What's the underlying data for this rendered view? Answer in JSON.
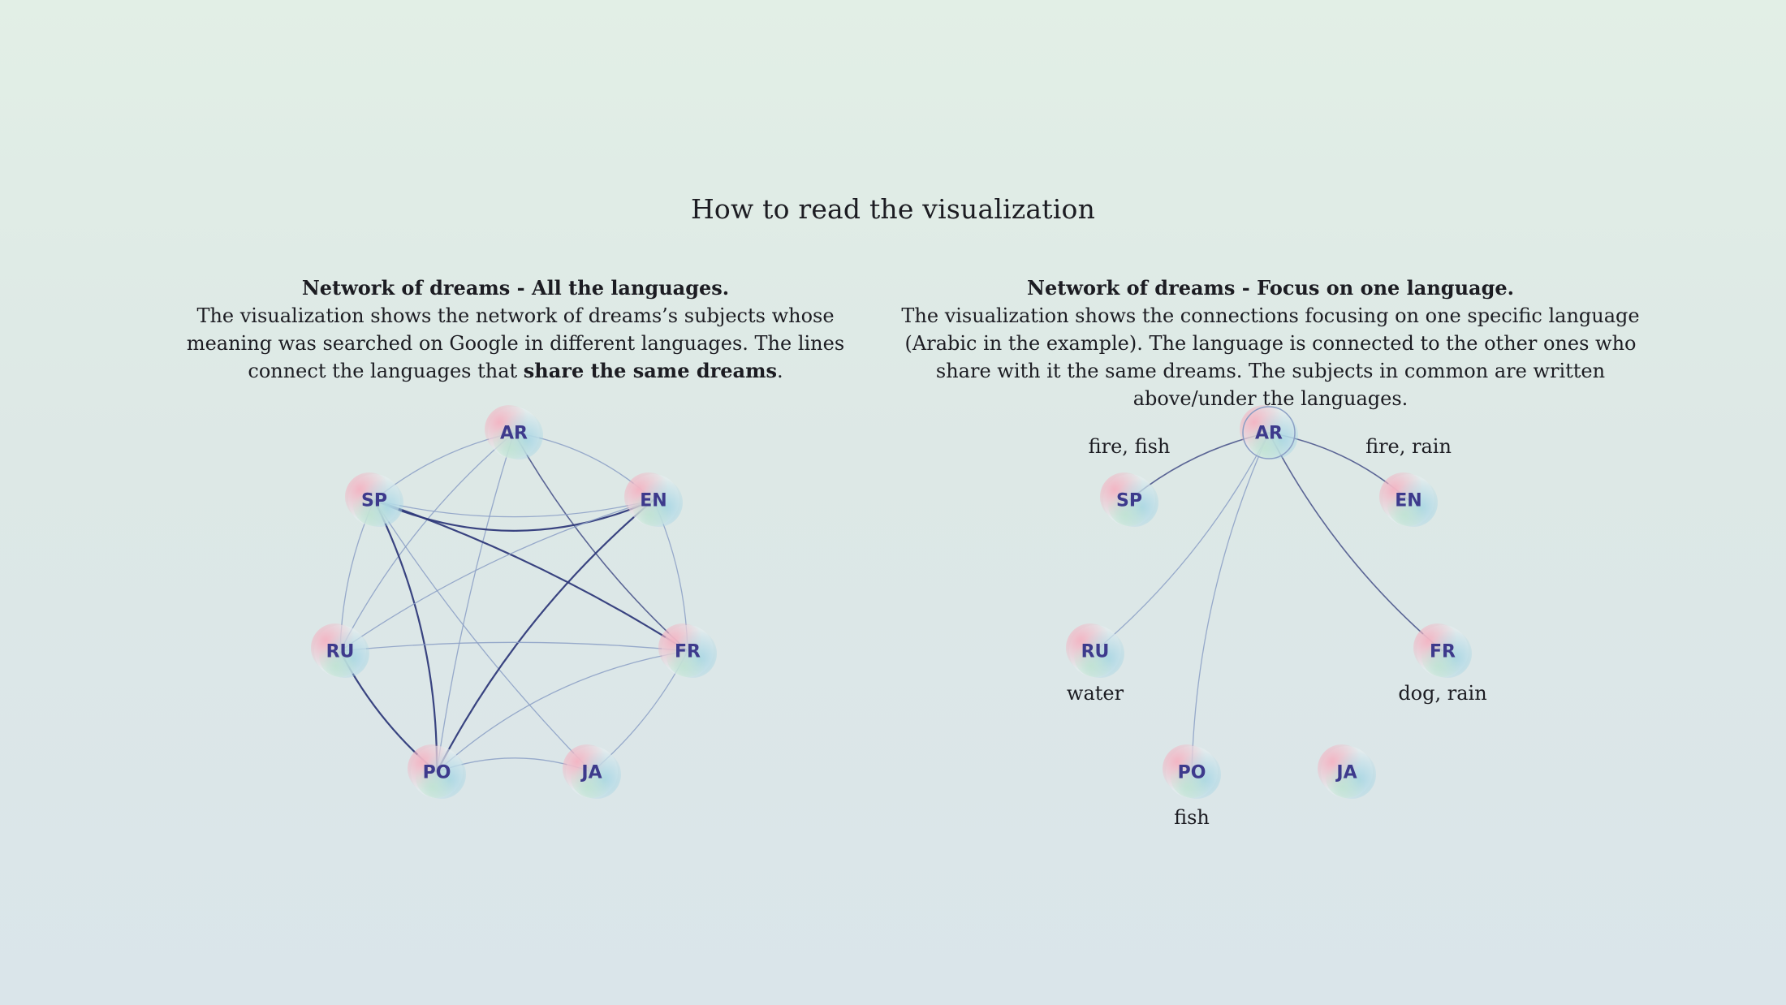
{
  "title": "How to read the visualization",
  "left_panel": {
    "heading": "Network of dreams - All the languages.",
    "text_before": "The visualization shows the network of dreams’s subjects whose meaning was searched on Google in different languages. The lines connect the languages that ",
    "text_bold": "share the same dreams",
    "text_after": ".",
    "nodes": [
      "AR",
      "SP",
      "EN",
      "RU",
      "FR",
      "PO",
      "JA"
    ]
  },
  "right_panel": {
    "heading": "Network of dreams - Focus on one language.",
    "text": "The visualization shows the connections focusing on one specific language (Arabic in the example). The language is connected to the other ones who share with it the same dreams. The subjects in common are written above/under the languages.",
    "focus": "AR",
    "nodes": [
      "AR",
      "SP",
      "EN",
      "RU",
      "FR",
      "PO",
      "JA"
    ],
    "topics": {
      "SP": "fire, fish",
      "EN": "fire, rain",
      "RU": "water",
      "FR": "dog, rain",
      "PO": "fish"
    }
  },
  "colors": {
    "node_label": "#3d3a8c",
    "edge_dark": "#2f3a7a",
    "edge_light": "#8a9ec4",
    "node_pink": "#f2b6c4",
    "node_blue": "#b7dbe6"
  }
}
